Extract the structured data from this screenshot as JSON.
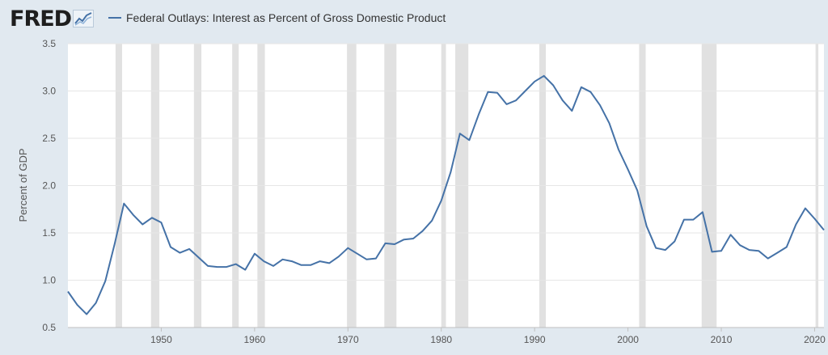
{
  "header": {
    "logo_text": "FRED",
    "legend_label": "Federal Outlays: Interest as Percent of Gross Domestic Product"
  },
  "colors": {
    "background": "#e1e9f0",
    "plot_background": "#ffffff",
    "series": "#4572a7",
    "recession": "#e1e1e1",
    "grid": "#e6e6e6"
  },
  "chart_data": {
    "type": "line",
    "ylabel": "Percent of GDP",
    "xlabel": "",
    "xlim": [
      1940,
      2021
    ],
    "ylim": [
      0.5,
      3.5
    ],
    "yticks": [
      "0.5",
      "1.0",
      "1.5",
      "2.0",
      "2.5",
      "3.0",
      "3.5"
    ],
    "xticks": [
      "1950",
      "1960",
      "1970",
      "1980",
      "1990",
      "2000",
      "2010",
      "2020"
    ],
    "grid": true,
    "legend_position": "top",
    "recessions": [
      [
        1945.1,
        1945.8
      ],
      [
        1948.9,
        1949.8
      ],
      [
        1953.5,
        1954.3
      ],
      [
        1957.6,
        1958.3
      ],
      [
        1960.3,
        1961.1
      ],
      [
        1969.9,
        1970.9
      ],
      [
        1973.9,
        1975.2
      ],
      [
        1980.0,
        1980.5
      ],
      [
        1981.5,
        1982.9
      ],
      [
        1990.5,
        1991.2
      ],
      [
        2001.2,
        2001.9
      ],
      [
        2007.9,
        2009.5
      ],
      [
        2020.1,
        2020.4
      ]
    ],
    "series": [
      {
        "name": "Federal Outlays: Interest as Percent of Gross Domestic Product",
        "x": [
          1940,
          1941,
          1942,
          1943,
          1944,
          1945,
          1946,
          1947,
          1948,
          1949,
          1950,
          1951,
          1952,
          1953,
          1954,
          1955,
          1956,
          1957,
          1958,
          1959,
          1960,
          1961,
          1962,
          1963,
          1964,
          1965,
          1966,
          1967,
          1968,
          1969,
          1970,
          1971,
          1972,
          1973,
          1974,
          1975,
          1976,
          1977,
          1978,
          1979,
          1980,
          1981,
          1982,
          1983,
          1984,
          1985,
          1986,
          1987,
          1988,
          1989,
          1990,
          1991,
          1992,
          1993,
          1994,
          1995,
          1996,
          1997,
          1998,
          1999,
          2000,
          2001,
          2002,
          2003,
          2004,
          2005,
          2006,
          2007,
          2008,
          2009,
          2010,
          2011,
          2012,
          2013,
          2014,
          2015,
          2016,
          2017,
          2018,
          2019,
          2020,
          2021
        ],
        "values": [
          0.88,
          0.74,
          0.64,
          0.76,
          0.99,
          1.38,
          1.81,
          1.69,
          1.59,
          1.66,
          1.61,
          1.35,
          1.29,
          1.33,
          1.24,
          1.15,
          1.14,
          1.14,
          1.17,
          1.11,
          1.28,
          1.2,
          1.15,
          1.22,
          1.2,
          1.16,
          1.16,
          1.2,
          1.18,
          1.25,
          1.34,
          1.28,
          1.22,
          1.23,
          1.39,
          1.38,
          1.43,
          1.44,
          1.52,
          1.63,
          1.84,
          2.14,
          2.55,
          2.48,
          2.75,
          2.99,
          2.98,
          2.86,
          2.9,
          3.0,
          3.1,
          3.16,
          3.06,
          2.9,
          2.79,
          3.04,
          2.99,
          2.85,
          2.66,
          2.38,
          2.17,
          1.95,
          1.57,
          1.34,
          1.32,
          1.41,
          1.64,
          1.64,
          1.72,
          1.3,
          1.31,
          1.48,
          1.37,
          1.32,
          1.31,
          1.23,
          1.29,
          1.35,
          1.59,
          1.76,
          1.65,
          1.53
        ]
      }
    ]
  }
}
